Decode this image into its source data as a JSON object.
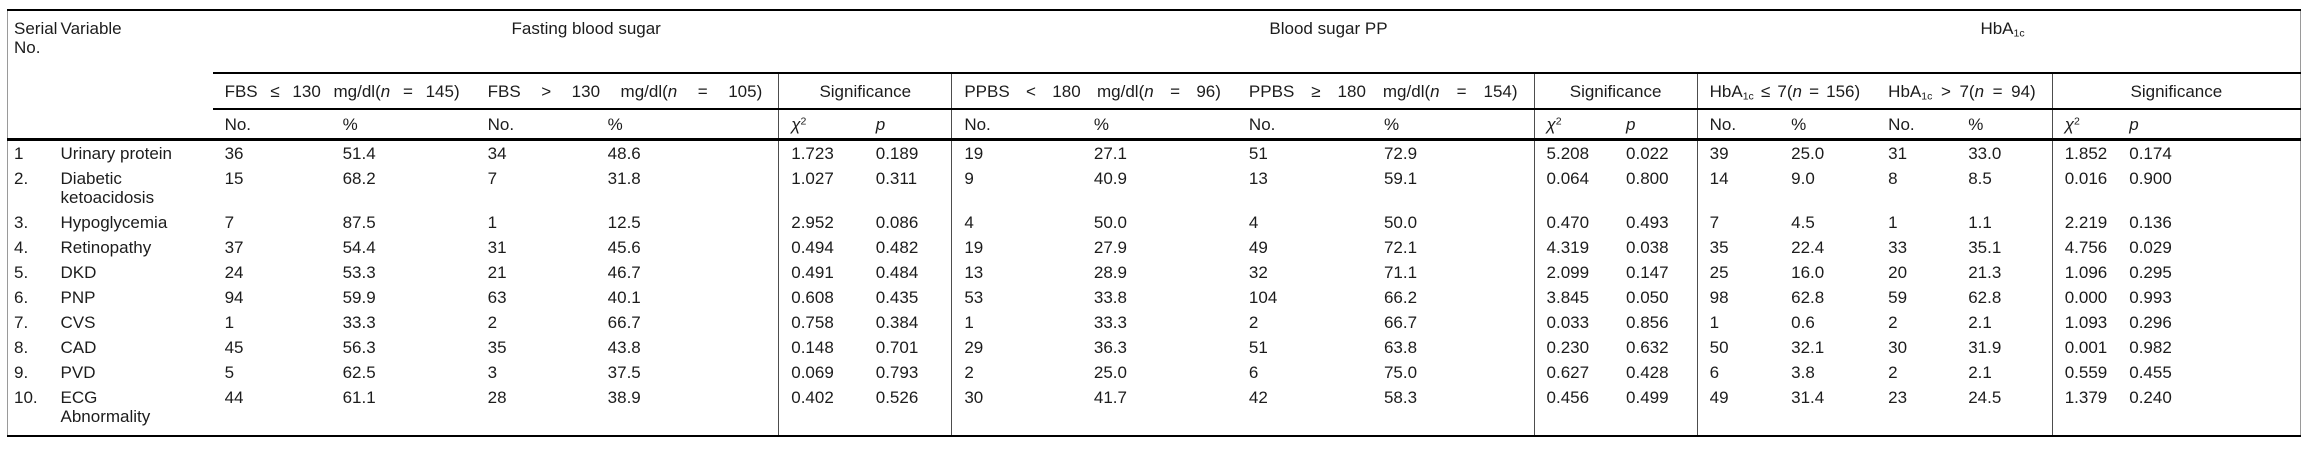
{
  "colors": {
    "background": "#ffffff",
    "text": "#1c1c1c",
    "heavy_rule": "#000000",
    "outer_frame": "#9a9a9a",
    "group_separator": "#4d4d4d"
  },
  "table": {
    "stub": {
      "serial": "Serial No.",
      "variable": "Variable"
    },
    "groups": [
      {
        "title_parts": [
          {
            "t": "Fasting blood sugar"
          }
        ],
        "sub_headers": [
          {
            "parts": [
              {
                "t": "FBS ≤ 130 mg/dl("
              },
              {
                "t": "n",
                "s": "i"
              },
              {
                "t": " = 145)"
              }
            ]
          },
          {
            "parts": [
              {
                "t": "FBS > 130 mg/dl("
              },
              {
                "t": "n",
                "s": "i"
              },
              {
                "t": " = 105)"
              }
            ]
          },
          {
            "parts": [
              {
                "t": "Significance"
              }
            ]
          }
        ]
      },
      {
        "title_parts": [
          {
            "t": "Blood sugar PP"
          }
        ],
        "sub_headers": [
          {
            "parts": [
              {
                "t": "PPBS < 180 mg/dl("
              },
              {
                "t": "n",
                "s": "i"
              },
              {
                "t": " = 96)"
              }
            ]
          },
          {
            "parts": [
              {
                "t": "PPBS ≥ 180 mg/dl("
              },
              {
                "t": "n",
                "s": "i"
              },
              {
                "t": " = 154)"
              }
            ]
          },
          {
            "parts": [
              {
                "t": "Significance"
              }
            ]
          }
        ]
      },
      {
        "title_parts": [
          {
            "t": "HbA"
          },
          {
            "t": "1c",
            "s": "sub"
          }
        ],
        "sub_headers": [
          {
            "parts": [
              {
                "t": "HbA"
              },
              {
                "t": "1c",
                "s": "sub"
              },
              {
                "t": " ≤ 7("
              },
              {
                "t": "n",
                "s": "i"
              },
              {
                "t": " = 156)"
              }
            ]
          },
          {
            "parts": [
              {
                "t": "HbA"
              },
              {
                "t": "1c",
                "s": "sub"
              },
              {
                "t": " > 7("
              },
              {
                "t": "n",
                "s": "i"
              },
              {
                "t": " = 94)"
              }
            ]
          },
          {
            "parts": [
              {
                "t": "Significance"
              }
            ]
          }
        ]
      }
    ],
    "measure": {
      "no": "No.",
      "pct": "%",
      "chi": "χ",
      "chi_sup": "2",
      "p": "p"
    },
    "rows": [
      {
        "serial": "1",
        "variable": "Urinary protein",
        "values": [
          "36",
          "51.4",
          "34",
          "48.6",
          "1.723",
          "0.189",
          "19",
          "27.1",
          "51",
          "72.9",
          "5.208",
          "0.022",
          "39",
          "25.0",
          "31",
          "33.0",
          "1.852",
          "0.174"
        ]
      },
      {
        "serial": "2.",
        "variable": "Diabetic ketoacidosis",
        "values": [
          "15",
          "68.2",
          "7",
          "31.8",
          "1.027",
          "0.311",
          "9",
          "40.9",
          "13",
          "59.1",
          "0.064",
          "0.800",
          "14",
          "9.0",
          "8",
          "8.5",
          "0.016",
          "0.900"
        ]
      },
      {
        "serial": "3.",
        "variable": "Hypoglycemia",
        "values": [
          "7",
          "87.5",
          "1",
          "12.5",
          "2.952",
          "0.086",
          "4",
          "50.0",
          "4",
          "50.0",
          "0.470",
          "0.493",
          "7",
          "4.5",
          "1",
          "1.1",
          "2.219",
          "0.136"
        ]
      },
      {
        "serial": "4.",
        "variable": "Retinopathy",
        "values": [
          "37",
          "54.4",
          "31",
          "45.6",
          "0.494",
          "0.482",
          "19",
          "27.9",
          "49",
          "72.1",
          "4.319",
          "0.038",
          "35",
          "22.4",
          "33",
          "35.1",
          "4.756",
          "0.029"
        ]
      },
      {
        "serial": "5.",
        "variable": "DKD",
        "values": [
          "24",
          "53.3",
          "21",
          "46.7",
          "0.491",
          "0.484",
          "13",
          "28.9",
          "32",
          "71.1",
          "2.099",
          "0.147",
          "25",
          "16.0",
          "20",
          "21.3",
          "1.096",
          "0.295"
        ]
      },
      {
        "serial": "6.",
        "variable": "PNP",
        "values": [
          "94",
          "59.9",
          "63",
          "40.1",
          "0.608",
          "0.435",
          "53",
          "33.8",
          "104",
          "66.2",
          "3.845",
          "0.050",
          "98",
          "62.8",
          "59",
          "62.8",
          "0.000",
          "0.993"
        ]
      },
      {
        "serial": "7.",
        "variable": "CVS",
        "values": [
          "1",
          "33.3",
          "2",
          "66.7",
          "0.758",
          "0.384",
          "1",
          "33.3",
          "2",
          "66.7",
          "0.033",
          "0.856",
          "1",
          "0.6",
          "2",
          "2.1",
          "1.093",
          "0.296"
        ]
      },
      {
        "serial": "8.",
        "variable": "CAD",
        "values": [
          "45",
          "56.3",
          "35",
          "43.8",
          "0.148",
          "0.701",
          "29",
          "36.3",
          "51",
          "63.8",
          "0.230",
          "0.632",
          "50",
          "32.1",
          "30",
          "31.9",
          "0.001",
          "0.982"
        ]
      },
      {
        "serial": "9.",
        "variable": "PVD",
        "values": [
          "5",
          "62.5",
          "3",
          "37.5",
          "0.069",
          "0.793",
          "2",
          "25.0",
          "6",
          "75.0",
          "0.627",
          "0.428",
          "6",
          "3.8",
          "2",
          "2.1",
          "0.559",
          "0.455"
        ]
      },
      {
        "serial": "10.",
        "variable": "ECG Abnormality",
        "values": [
          "44",
          "61.1",
          "28",
          "38.9",
          "0.402",
          "0.526",
          "30",
          "41.7",
          "42",
          "58.3",
          "0.456",
          "0.499",
          "49",
          "31.4",
          "23",
          "24.5",
          "1.379",
          "0.240"
        ]
      }
    ]
  }
}
